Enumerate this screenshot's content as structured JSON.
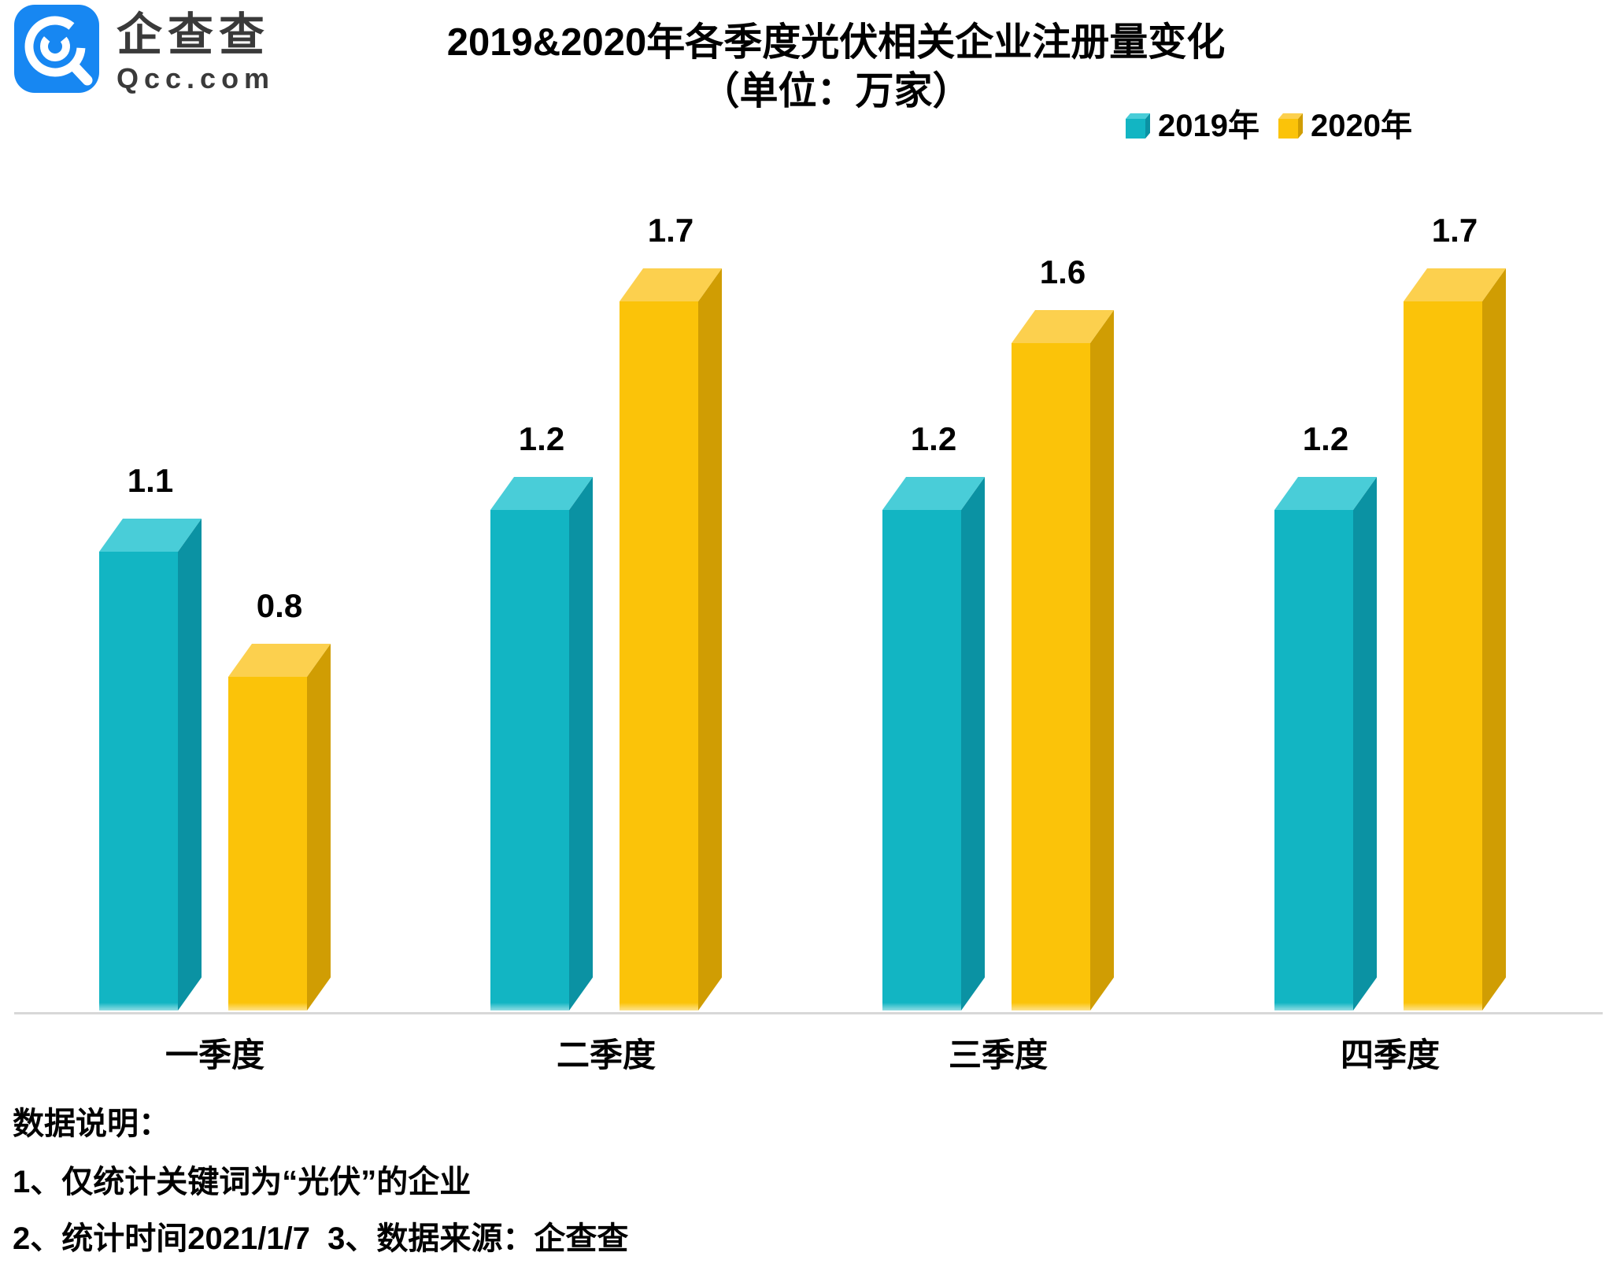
{
  "logo": {
    "company_name": "企查查",
    "domain": "Qcc.com",
    "icon_color": "#1787F2",
    "text_color": "#3A3A3A"
  },
  "title": {
    "line1": "2019&2020年各季度光伏相关企业注册量变化",
    "line2": "（单位：万家）"
  },
  "legend": {
    "items": [
      {
        "label": "2019年",
        "color": "#12B5C3"
      },
      {
        "label": "2020年",
        "color": "#FBC309"
      }
    ]
  },
  "chart_data": {
    "type": "bar",
    "title": "2019&2020年各季度光伏相关企业注册量变化",
    "subtitle": "（单位：万家）",
    "unit": "万家",
    "categories": [
      "一季度",
      "二季度",
      "三季度",
      "四季度"
    ],
    "series": [
      {
        "name": "2019年",
        "values": [
          1.1,
          1.2,
          1.2,
          1.2
        ],
        "color": "#12B5C3",
        "color_top": "#49CDD8",
        "color_side": "#0B92A3"
      },
      {
        "name": "2020年",
        "values": [
          0.8,
          1.7,
          1.6,
          1.7
        ],
        "color": "#FBC309",
        "color_top": "#FCD04E",
        "color_side": "#D09D03"
      }
    ],
    "value_labels": true,
    "legend_position": "top-right",
    "grid": false,
    "ylim": [
      0,
      1.8
    ],
    "baseline_color": "#D8D8D8",
    "style": "3d-columns"
  },
  "footer": {
    "heading": "数据说明：",
    "note1": "1、仅统计关键词为“光伏”的企业",
    "note2": "2、统计时间2021/1/7  3、数据来源：企查查"
  }
}
